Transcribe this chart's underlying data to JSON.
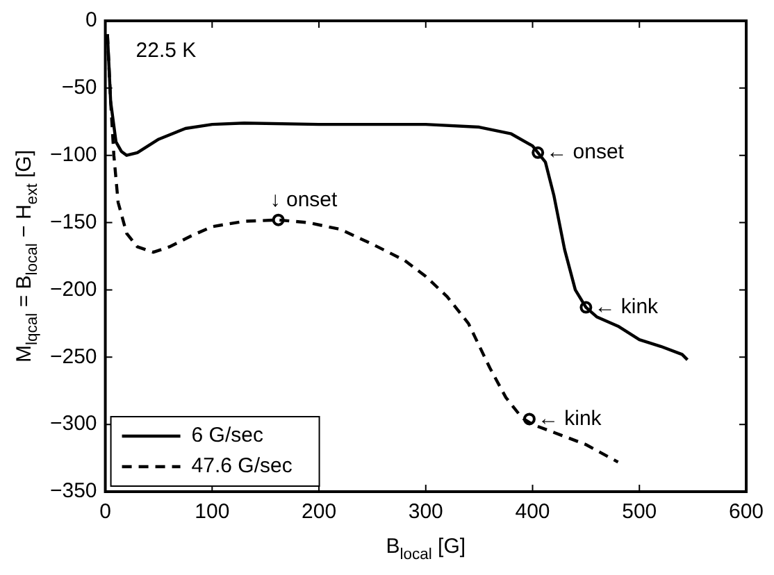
{
  "chart_data": {
    "type": "line",
    "xlabel": "B$_{local}$ [G]",
    "ylabel": "M$_{lqcal}$ = B$_{local}$ − H$_{ext}$ [G]",
    "xlim": [
      0,
      600
    ],
    "xticks": [
      0,
      100,
      200,
      300,
      400,
      500,
      600
    ],
    "ylim": [
      -350,
      0
    ],
    "yticks": [
      -350,
      -300,
      -250,
      -200,
      -150,
      -100,
      -50,
      0
    ],
    "grid": false,
    "legend": "bottom left",
    "marker": "none",
    "series": [
      {
        "name": "6 G/sec",
        "color": "#000000",
        "line_style": "solid",
        "x": [
          2,
          5,
          10,
          15,
          20,
          30,
          50,
          75,
          100,
          130,
          200,
          300,
          350,
          380,
          400,
          405,
          412,
          420,
          430,
          440,
          450,
          460,
          480,
          500,
          520,
          540,
          545
        ],
        "values": [
          -10,
          -60,
          -90,
          -97,
          -100,
          -98,
          -88,
          -80,
          -77,
          -76,
          -77,
          -77,
          -79,
          -84,
          -93,
          -98,
          -105,
          -130,
          -170,
          -200,
          -213,
          -220,
          -227,
          -237,
          -242,
          -248,
          -252
        ]
      },
      {
        "name": "47.6 G/sec",
        "color": "#000000",
        "line_style": "dashed",
        "x": [
          2,
          5,
          8,
          12,
          20,
          30,
          45,
          60,
          80,
          100,
          130,
          162,
          190,
          220,
          250,
          280,
          300,
          320,
          340,
          360,
          375,
          390,
          400,
          420,
          450,
          480
        ],
        "values": [
          -10,
          -60,
          -100,
          -135,
          -158,
          -168,
          -172,
          -168,
          -160,
          -153,
          -149,
          -148,
          -150,
          -155,
          -166,
          -178,
          -190,
          -205,
          -225,
          -258,
          -280,
          -295,
          -300,
          -306,
          -315,
          -328
        ]
      }
    ],
    "annotations": [
      "22.5 K",
      {
        "text": "← onset",
        "x": 405,
        "y": -98
      },
      {
        "text": "↓ onset",
        "x": 162,
        "y": -148
      },
      {
        "text": "← kink",
        "x": 450,
        "y": -213
      },
      {
        "text": "← kink",
        "x": 397,
        "y": -296
      }
    ]
  }
}
